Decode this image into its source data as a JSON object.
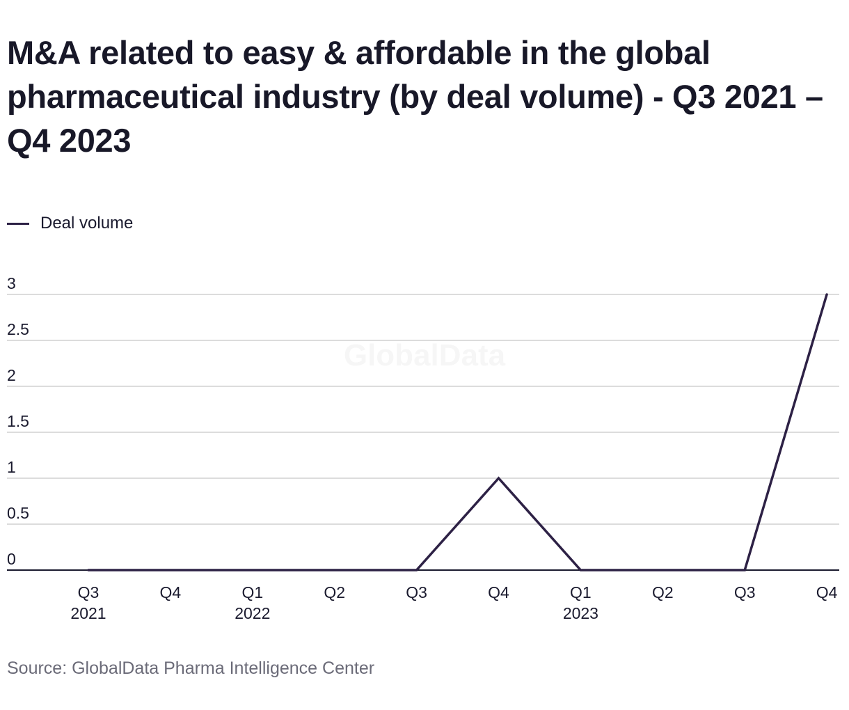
{
  "title": "M&A related to easy & affordable in the global pharmaceutical industry (by deal volume) - Q3 2021 – Q4 2023",
  "source": "Source: GlobalData Pharma Intelligence Center",
  "watermark": "GlobalData",
  "colors": {
    "series": "#2d2145",
    "grid": "#d0d0d0",
    "axis": "#1a1a2e",
    "text": "#1a1a2e",
    "muted": "#6b6b78"
  },
  "chart_data": {
    "type": "line",
    "categories": [
      {
        "quarter": "Q3",
        "year": "2021"
      },
      {
        "quarter": "Q4",
        "year": ""
      },
      {
        "quarter": "Q1",
        "year": "2022"
      },
      {
        "quarter": "Q2",
        "year": ""
      },
      {
        "quarter": "Q3",
        "year": ""
      },
      {
        "quarter": "Q4",
        "year": ""
      },
      {
        "quarter": "Q1",
        "year": "2023"
      },
      {
        "quarter": "Q2",
        "year": ""
      },
      {
        "quarter": "Q3",
        "year": ""
      },
      {
        "quarter": "Q4",
        "year": ""
      }
    ],
    "series": [
      {
        "name": "Deal volume",
        "values": [
          0,
          0,
          0,
          0,
          0,
          1,
          0,
          0,
          0,
          3
        ]
      }
    ],
    "yticks": [
      "0",
      "0.5",
      "1",
      "1.5",
      "2",
      "2.5",
      "3"
    ],
    "ylim": [
      0,
      3
    ],
    "grid": true,
    "legend_position": "top-left",
    "xlabel": "",
    "ylabel": ""
  }
}
